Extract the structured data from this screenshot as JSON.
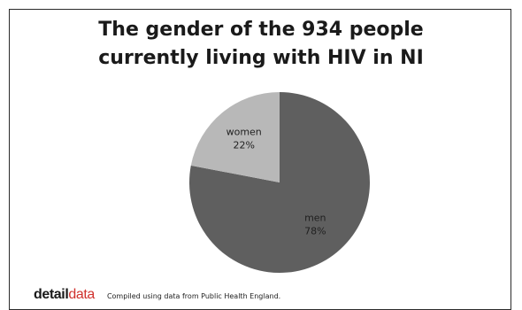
{
  "chart_data": {
    "type": "pie",
    "title_lines": [
      "The gender of the 934 people",
      "currently living with HIV in NI"
    ],
    "slices": [
      {
        "label": "men",
        "value": 78,
        "value_label": "78%",
        "color": "#5f5f5f"
      },
      {
        "label": "women",
        "value": 22,
        "value_label": "22%",
        "color": "#b8b8b8"
      }
    ],
    "start": "12 o'clock",
    "direction": "clockwise"
  },
  "footer": {
    "brand_part1": "detail",
    "brand_part2": "data",
    "source": "Compiled using data from Public Health England."
  },
  "colors": {
    "brand_dark": "#1a1a1a",
    "brand_red": "#d0312d"
  }
}
